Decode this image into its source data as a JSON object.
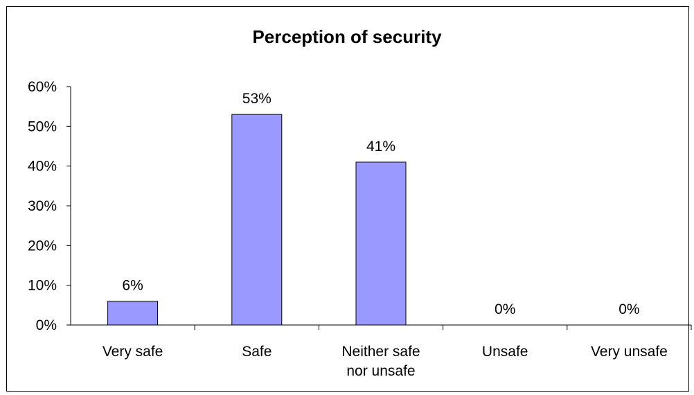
{
  "chart_data": {
    "type": "bar",
    "title": "Perception of security",
    "xlabel": "",
    "ylabel": "",
    "categories": [
      [
        "Very safe"
      ],
      [
        "Safe"
      ],
      [
        "Neither safe",
        "nor unsafe"
      ],
      [
        "Unsafe"
      ],
      [
        "Very unsafe"
      ]
    ],
    "values": [
      6,
      53,
      41,
      0,
      0
    ],
    "data_labels": [
      "6%",
      "53%",
      "41%",
      "0%",
      "0%"
    ],
    "ylim": [
      0,
      60
    ],
    "yticks": [
      0,
      10,
      20,
      30,
      40,
      50,
      60
    ],
    "ytick_labels": [
      "0%",
      "10%",
      "20%",
      "30%",
      "40%",
      "50%",
      "60%"
    ],
    "grid": false,
    "legend": "none",
    "bar_color": "#9999ff"
  }
}
